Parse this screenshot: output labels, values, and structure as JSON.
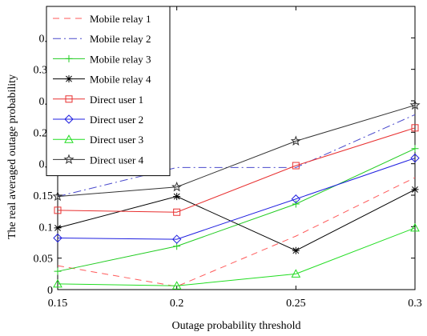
{
  "chart_data": {
    "type": "line",
    "xlabel": "Outage probability threshold",
    "ylabel": "The real averaged outage probability",
    "x": [
      0.15,
      0.2,
      0.25,
      0.3
    ],
    "xticks": [
      "0.15",
      "0.2",
      "0.25",
      "0.3"
    ],
    "yticks": [
      "0",
      "0.05",
      "0.1",
      "0.15",
      "0.2",
      "0.25",
      "0.3",
      "0.35",
      "0.4"
    ],
    "xlim": [
      0.15,
      0.3
    ],
    "ylim": [
      0,
      0.45
    ],
    "grid": false,
    "legend_position": "top-left",
    "series": [
      {
        "name": "Mobile relay 1",
        "values": [
          0.038,
          0.005,
          0.085,
          0.178
        ],
        "color": "#ff5a5a",
        "dash": "8,6",
        "marker": "none"
      },
      {
        "name": "Mobile relay 2",
        "values": [
          0.148,
          0.194,
          0.194,
          0.278
        ],
        "color": "#4a4acc",
        "dash": "10,4,2,4",
        "marker": "none"
      },
      {
        "name": "Mobile relay 3",
        "values": [
          0.029,
          0.069,
          0.136,
          0.224
        ],
        "color": "#22cc22",
        "dash": "",
        "marker": "plus"
      },
      {
        "name": "Mobile relay 4",
        "values": [
          0.098,
          0.148,
          0.062,
          0.159
        ],
        "color": "#000000",
        "dash": "",
        "marker": "asterisk"
      },
      {
        "name": "Direct user 1",
        "values": [
          0.126,
          0.123,
          0.197,
          0.257
        ],
        "color": "#e83030",
        "dash": "",
        "marker": "square"
      },
      {
        "name": "Direct user 2",
        "values": [
          0.082,
          0.08,
          0.144,
          0.209
        ],
        "color": "#1f1fe0",
        "dash": "",
        "marker": "diamond"
      },
      {
        "name": "Direct user 3",
        "values": [
          0.009,
          0.006,
          0.025,
          0.098
        ],
        "color": "#22dd22",
        "dash": "",
        "marker": "triangle"
      },
      {
        "name": "Direct user 4",
        "values": [
          0.148,
          0.163,
          0.236,
          0.293
        ],
        "color": "#333333",
        "dash": "",
        "marker": "star"
      }
    ]
  }
}
